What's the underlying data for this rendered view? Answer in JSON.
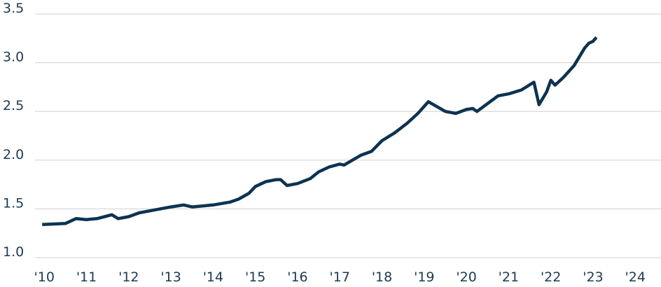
{
  "chart_data": {
    "type": "line",
    "x": [
      2009.95,
      2010.5,
      2010.75,
      2011.0,
      2011.25,
      2011.6,
      2011.75,
      2012.0,
      2012.25,
      2012.5,
      2013.0,
      2013.3,
      2013.5,
      2013.75,
      2014.0,
      2014.4,
      2014.6,
      2014.85,
      2015.0,
      2015.25,
      2015.5,
      2015.6,
      2015.75,
      2016.0,
      2016.3,
      2016.5,
      2016.75,
      2017.0,
      2017.1,
      2017.3,
      2017.5,
      2017.75,
      2018.0,
      2018.3,
      2018.6,
      2018.85,
      2019.1,
      2019.5,
      2019.75,
      2020.0,
      2020.15,
      2020.25,
      2020.5,
      2020.75,
      2021.0,
      2021.3,
      2021.6,
      2021.72,
      2021.9,
      2022.0,
      2022.1,
      2022.3,
      2022.55,
      2022.8,
      2022.9,
      2023.0,
      2023.08
    ],
    "series": [
      {
        "color": "#0d3350",
        "values": [
          1.34,
          1.35,
          1.4,
          1.39,
          1.4,
          1.44,
          1.4,
          1.42,
          1.46,
          1.48,
          1.52,
          1.54,
          1.52,
          1.53,
          1.54,
          1.57,
          1.6,
          1.66,
          1.73,
          1.78,
          1.8,
          1.8,
          1.74,
          1.76,
          1.81,
          1.88,
          1.93,
          1.96,
          1.95,
          2.0,
          2.05,
          2.09,
          2.2,
          2.28,
          2.38,
          2.48,
          2.6,
          2.5,
          2.48,
          2.52,
          2.53,
          2.5,
          2.58,
          2.66,
          2.68,
          2.72,
          2.8,
          2.57,
          2.7,
          2.82,
          2.77,
          2.85,
          2.97,
          3.15,
          3.2,
          3.22,
          3.26
        ]
      }
    ],
    "xlim": [
      2009.78,
      2024.61
    ],
    "xticks": [
      {
        "value": 2010,
        "label": "'10"
      },
      {
        "value": 2011,
        "label": "'11"
      },
      {
        "value": 2012,
        "label": "'12"
      },
      {
        "value": 2013,
        "label": "'13"
      },
      {
        "value": 2014,
        "label": "'14"
      },
      {
        "value": 2015,
        "label": "'15"
      },
      {
        "value": 2016,
        "label": "'16"
      },
      {
        "value": 2017,
        "label": "'17"
      },
      {
        "value": 2018,
        "label": "'18"
      },
      {
        "value": 2019,
        "label": "'19"
      },
      {
        "value": 2020,
        "label": "'20"
      },
      {
        "value": 2021,
        "label": "'21"
      },
      {
        "value": 2022,
        "label": "'22"
      },
      {
        "value": 2023,
        "label": "'23"
      },
      {
        "value": 2024,
        "label": "'24"
      }
    ],
    "ylim": [
      1.0,
      3.5
    ],
    "yticks": [
      {
        "value": 1.0,
        "label": "1.0"
      },
      {
        "value": 1.5,
        "label": "1.5"
      },
      {
        "value": 2.0,
        "label": "2.0"
      },
      {
        "value": 2.5,
        "label": "2.5"
      },
      {
        "value": 3.0,
        "label": "3.0"
      },
      {
        "value": 3.5,
        "label": "3.5"
      }
    ],
    "grid": true
  }
}
